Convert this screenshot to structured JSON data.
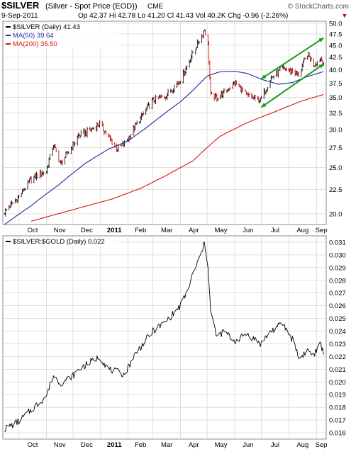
{
  "header": {
    "symbol": "$SILVER",
    "description": "(Silver - Spot Price (EOD))",
    "exchange": "CME",
    "brand": "© StockCharts.com",
    "date": "9-Sep-2011",
    "quote": "Op 42.37  Hi 42.78  Lo 41.20  Cl 41.43  Vol 40.2K  Chg -0.96 (-2.26%)",
    "change_arrow": "▼"
  },
  "colors": {
    "price": "#000000",
    "down_bar": "#cc0000",
    "ma50": "#1f2a99",
    "ma200": "#dd1111",
    "channel": "#1a9a1a",
    "grid": "#cccccc",
    "ratio": "#000000"
  },
  "chart_data": [
    {
      "type": "line",
      "legend": [
        {
          "label": "$SILVER (Daily) 41.43",
          "color": "#000000"
        },
        {
          "label": "MA(50) 39.64",
          "color": "#1f2a99"
        },
        {
          "label": "MA(200) 35.50",
          "color": "#dd1111"
        }
      ],
      "y_scale": "log",
      "ylim": [
        19.0,
        50.5
      ],
      "y_ticks": [
        "20.0",
        "22.5",
        "25.0",
        "27.5",
        "30.0",
        "32.5",
        "35.0",
        "37.5",
        "40.0",
        "42.5",
        "45.0",
        "47.5",
        "50.0"
      ],
      "x_labels": [
        "Oct",
        "Nov",
        "Dec",
        "2011",
        "Feb",
        "Mar",
        "Apr",
        "May",
        "Jun",
        "Jul",
        "Aug",
        "Sep"
      ],
      "series": [
        {
          "name": "$SILVER",
          "style": "ohlc",
          "x": [
            "2010-09-15",
            "2010-10-01",
            "2010-10-15",
            "2010-11-01",
            "2010-11-09",
            "2010-11-17",
            "2010-12-01",
            "2010-12-07",
            "2010-12-15",
            "2010-12-31",
            "2011-01-10",
            "2011-01-20",
            "2011-01-28",
            "2011-02-07",
            "2011-02-21",
            "2011-03-01",
            "2011-03-15",
            "2011-03-31",
            "2011-04-08",
            "2011-04-15",
            "2011-04-25",
            "2011-04-28",
            "2011-05-02",
            "2011-05-05",
            "2011-05-12",
            "2011-05-20",
            "2011-06-01",
            "2011-06-15",
            "2011-06-30",
            "2011-07-12",
            "2011-07-25",
            "2011-08-08",
            "2011-08-12",
            "2011-08-22",
            "2011-08-29",
            "2011-09-06",
            "2011-09-09"
          ],
          "values": [
            20.2,
            21.7,
            23.7,
            24.6,
            27.9,
            25.4,
            27.8,
            29.1,
            29.5,
            30.8,
            28.9,
            27.3,
            28.0,
            30.0,
            33.0,
            34.5,
            35.2,
            37.9,
            40.5,
            43.5,
            47.0,
            48.6,
            45.0,
            35.3,
            35.0,
            35.8,
            37.6,
            35.3,
            34.5,
            38.5,
            40.2,
            39.5,
            39.0,
            43.2,
            41.0,
            42.3,
            41.43
          ]
        },
        {
          "name": "MA(50)",
          "x": [
            "2010-09-15",
            "2010-10-15",
            "2010-11-15",
            "2010-12-15",
            "2011-01-10",
            "2011-02-01",
            "2011-02-21",
            "2011-03-15",
            "2011-04-01",
            "2011-04-15",
            "2011-05-01",
            "2011-05-15",
            "2011-06-01",
            "2011-06-15",
            "2011-07-01",
            "2011-07-20",
            "2011-08-05",
            "2011-08-20",
            "2011-09-09"
          ],
          "values": [
            19.0,
            20.8,
            23.0,
            25.5,
            27.3,
            28.4,
            30.2,
            32.5,
            34.3,
            36.2,
            38.8,
            39.6,
            39.7,
            39.3,
            38.2,
            37.3,
            37.6,
            38.6,
            39.64
          ]
        },
        {
          "name": "MA(200)",
          "x": [
            "2010-10-15",
            "2010-12-01",
            "2011-01-15",
            "2011-02-15",
            "2011-03-15",
            "2011-04-15",
            "2011-05-15",
            "2011-06-15",
            "2011-07-15",
            "2011-08-15",
            "2011-09-09"
          ],
          "values": [
            19.3,
            20.4,
            21.5,
            22.6,
            24.0,
            25.8,
            29.0,
            31.0,
            32.6,
            34.4,
            35.5
          ]
        },
        {
          "name": "channel-upper",
          "x": [
            "2011-07-01",
            "2011-09-09"
          ],
          "values": [
            38.3,
            46.6
          ]
        },
        {
          "name": "channel-lower",
          "x": [
            "2011-07-01",
            "2011-09-09"
          ],
          "values": [
            33.4,
            41.1
          ]
        }
      ]
    },
    {
      "type": "line",
      "legend": [
        {
          "label": "$SILVER:$GOLD (Daily) 0.022",
          "color": "#000000"
        }
      ],
      "ylim": [
        0.0155,
        0.0315
      ],
      "y_ticks": [
        "0.016",
        "0.017",
        "0.018",
        "0.019",
        "0.020",
        "0.021",
        "0.022",
        "0.023",
        "0.024",
        "0.025",
        "0.026",
        "0.027",
        "0.028",
        "0.029",
        "0.030",
        "0.031"
      ],
      "x_labels": [
        "Oct",
        "Nov",
        "Dec",
        "2011",
        "Feb",
        "Mar",
        "Apr",
        "May",
        "Jun",
        "Jul",
        "Aug",
        "Sep"
      ],
      "series": [
        {
          "name": "$SILVER:$GOLD",
          "x": [
            "2010-09-15",
            "2010-10-01",
            "2010-10-15",
            "2010-11-01",
            "2010-11-09",
            "2010-11-17",
            "2010-12-01",
            "2010-12-10",
            "2010-12-31",
            "2011-01-10",
            "2011-01-28",
            "2011-02-07",
            "2011-02-21",
            "2011-03-01",
            "2011-03-15",
            "2011-03-31",
            "2011-04-08",
            "2011-04-15",
            "2011-04-25",
            "2011-04-28",
            "2011-05-02",
            "2011-05-05",
            "2011-05-12",
            "2011-05-20",
            "2011-06-01",
            "2011-06-15",
            "2011-06-30",
            "2011-07-12",
            "2011-07-25",
            "2011-08-08",
            "2011-08-12",
            "2011-08-22",
            "2011-08-29",
            "2011-09-06",
            "2011-09-09"
          ],
          "values": [
            0.0163,
            0.0169,
            0.0178,
            0.0189,
            0.0205,
            0.0199,
            0.0205,
            0.0211,
            0.022,
            0.021,
            0.0206,
            0.022,
            0.0233,
            0.024,
            0.0247,
            0.0259,
            0.027,
            0.0285,
            0.0302,
            0.031,
            0.0292,
            0.0255,
            0.0235,
            0.024,
            0.0232,
            0.0238,
            0.023,
            0.024,
            0.0246,
            0.023,
            0.0218,
            0.0225,
            0.0221,
            0.023,
            0.0222
          ]
        }
      ]
    }
  ]
}
